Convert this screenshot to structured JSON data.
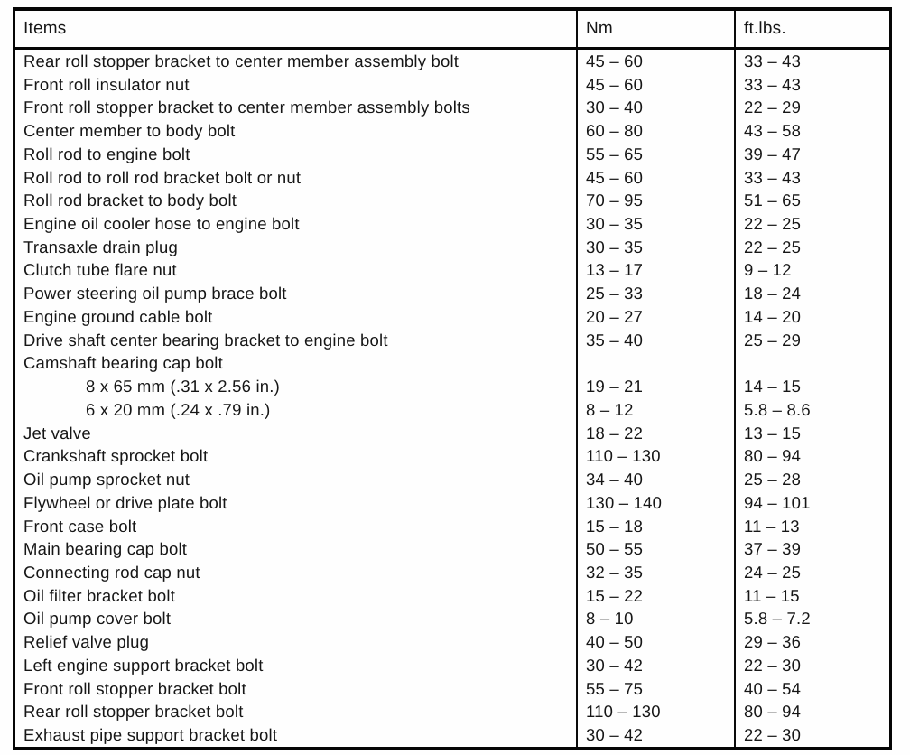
{
  "table": {
    "columns": [
      "Items",
      "Nm",
      "ft.lbs."
    ],
    "rows": [
      {
        "item": "Rear roll stopper bracket to center member assembly bolt",
        "nm": "45 – 60",
        "ftlbs": "33 – 43",
        "indent": false
      },
      {
        "item": "Front roll insulator nut",
        "nm": "45 – 60",
        "ftlbs": "33 – 43",
        "indent": false
      },
      {
        "item": "Front roll stopper bracket to center member assembly bolts",
        "nm": "30 – 40",
        "ftlbs": "22 – 29",
        "indent": false
      },
      {
        "item": "Center member to body bolt",
        "nm": "60 – 80",
        "ftlbs": "43 – 58",
        "indent": false
      },
      {
        "item": "Roll rod to engine bolt",
        "nm": "55 – 65",
        "ftlbs": "39 – 47",
        "indent": false
      },
      {
        "item": "Roll rod to roll rod bracket bolt or nut",
        "nm": "45 – 60",
        "ftlbs": "33 – 43",
        "indent": false
      },
      {
        "item": "Roll rod bracket to body bolt",
        "nm": "70 – 95",
        "ftlbs": "51 – 65",
        "indent": false
      },
      {
        "item": "Engine oil cooler hose to engine bolt",
        "nm": "30 – 35",
        "ftlbs": "22 – 25",
        "indent": false
      },
      {
        "item": "Transaxle drain plug",
        "nm": "30 – 35",
        "ftlbs": "22 – 25",
        "indent": false
      },
      {
        "item": "Clutch tube flare nut",
        "nm": "13 – 17",
        "ftlbs": "9 – 12",
        "indent": false
      },
      {
        "item": "Power steering oil pump brace bolt",
        "nm": "25 – 33",
        "ftlbs": "18 – 24",
        "indent": false
      },
      {
        "item": "Engine ground cable bolt",
        "nm": "20 – 27",
        "ftlbs": "14 – 20",
        "indent": false
      },
      {
        "item": "Drive shaft center bearing bracket to engine bolt",
        "nm": "35 – 40",
        "ftlbs": "25 – 29",
        "indent": false
      },
      {
        "item": "Camshaft bearing cap bolt",
        "nm": "",
        "ftlbs": "",
        "indent": false
      },
      {
        "item": "8 x 65 mm (.31 x 2.56 in.)",
        "nm": "19 – 21",
        "ftlbs": "14 – 15",
        "indent": true
      },
      {
        "item": "6 x 20 mm (.24 x .79 in.)",
        "nm": "8 – 12",
        "ftlbs": "5.8 – 8.6",
        "indent": true
      },
      {
        "item": "Jet valve",
        "nm": "18 – 22",
        "ftlbs": "13 – 15",
        "indent": false
      },
      {
        "item": "Crankshaft sprocket bolt",
        "nm": "110 – 130",
        "ftlbs": "80 – 94",
        "indent": false
      },
      {
        "item": "Oil pump sprocket nut",
        "nm": "34 – 40",
        "ftlbs": "25 – 28",
        "indent": false
      },
      {
        "item": "Flywheel or drive plate bolt",
        "nm": "130 – 140",
        "ftlbs": "94 – 101",
        "indent": false
      },
      {
        "item": "Front case bolt",
        "nm": "15 – 18",
        "ftlbs": "11 – 13",
        "indent": false
      },
      {
        "item": "Main bearing cap bolt",
        "nm": "50 – 55",
        "ftlbs": "37 – 39",
        "indent": false
      },
      {
        "item": "Connecting rod cap nut",
        "nm": "32 – 35",
        "ftlbs": "24 – 25",
        "indent": false
      },
      {
        "item": "Oil filter bracket bolt",
        "nm": "15 – 22",
        "ftlbs": "11 – 15",
        "indent": false
      },
      {
        "item": "Oil pump cover bolt",
        "nm": "8 – 10",
        "ftlbs": "5.8 – 7.2",
        "indent": false
      },
      {
        "item": "Relief valve plug",
        "nm": "40 – 50",
        "ftlbs": "29 – 36",
        "indent": false
      },
      {
        "item": "Left engine support bracket bolt",
        "nm": "30 – 42",
        "ftlbs": "22 – 30",
        "indent": false
      },
      {
        "item": "Front roll stopper bracket bolt",
        "nm": "55 – 75",
        "ftlbs": "40 – 54",
        "indent": false
      },
      {
        "item": "Rear roll stopper bracket bolt",
        "nm": "110 – 130",
        "ftlbs": "80 – 94",
        "indent": false
      },
      {
        "item": "Exhaust pipe support bracket bolt",
        "nm": "30 – 42",
        "ftlbs": "22 – 30",
        "indent": false
      }
    ]
  }
}
